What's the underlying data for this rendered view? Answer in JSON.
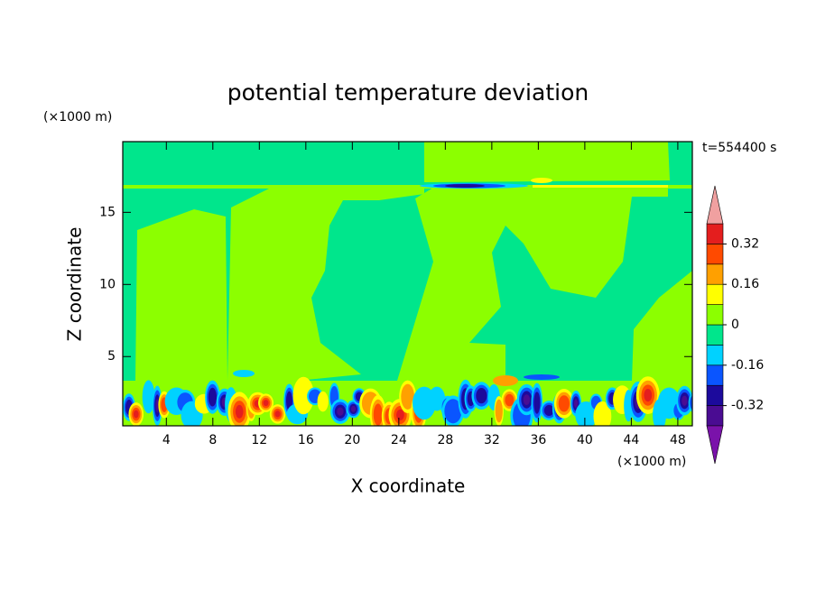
{
  "chart_data": {
    "type": "contour",
    "title": "potential temperature deviation",
    "time_label": "t=554400 s",
    "x_label": "X coordinate",
    "x_unit": "(×1000 m)",
    "y_label": "Z coordinate",
    "y_unit": "(×1000 m)",
    "xlim": [
      0.25,
      49.25
    ],
    "xticks": [
      4,
      8,
      12,
      16,
      20,
      24,
      28,
      32,
      36,
      40,
      44,
      48
    ],
    "ylim": [
      0.2,
      19.9
    ],
    "yticks": [
      5,
      10,
      15
    ],
    "colorbar": {
      "boundaries": [
        -0.4,
        -0.32,
        -0.24,
        -0.16,
        -0.08,
        0,
        0.08,
        0.16,
        0.24,
        0.32,
        0.4
      ],
      "colors": [
        "#4a0c92",
        "#1c0a9c",
        "#0a55ff",
        "#00d2ff",
        "#00e68c",
        "#8cff00",
        "#ffff00",
        "#ffa000",
        "#ff4a00",
        "#e41e1e"
      ],
      "under_color": "#7a12aa",
      "over_color": "#f0a0a0",
      "ticks": [
        -0.32,
        -0.16,
        0,
        0.16,
        0.32
      ]
    }
  }
}
